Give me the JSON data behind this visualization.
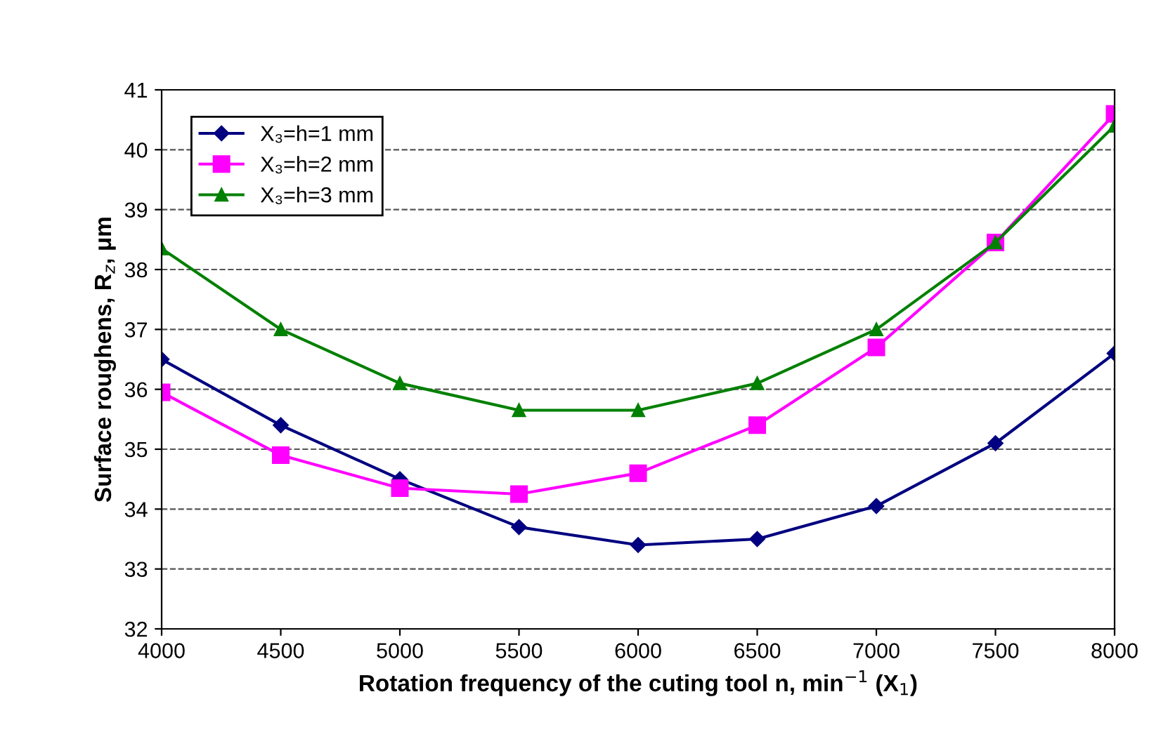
{
  "chart_data": {
    "type": "line",
    "xlabel": "Rotation frequency of the cuting tool n, min$^{−1}$ (X$_{1}$)",
    "ylabel": "Surface roughens, R$_{z}$, μm",
    "x": [
      4000,
      4500,
      5000,
      5500,
      6000,
      6500,
      7000,
      7500,
      8000
    ],
    "series": [
      {
        "name": "X₃=h=1 mm",
        "color": "#000080",
        "marker": "diamond",
        "values": [
          36.5,
          35.4,
          34.5,
          33.7,
          33.4,
          33.5,
          34.05,
          35.1,
          36.6
        ]
      },
      {
        "name": "X₃=h=2 mm",
        "color": "#ff00ff",
        "marker": "square",
        "values": [
          35.95,
          34.9,
          34.35,
          34.25,
          34.6,
          35.4,
          36.7,
          38.45,
          40.6
        ]
      },
      {
        "name": "X₃=h=3 mm",
        "color": "#008000",
        "marker": "triangle",
        "values": [
          38.35,
          37.0,
          36.1,
          35.65,
          35.65,
          36.1,
          37.0,
          38.45,
          40.4
        ]
      }
    ],
    "xlim": [
      4000,
      8000
    ],
    "xticks": [
      4000,
      4500,
      5000,
      5500,
      6000,
      6500,
      7000,
      7500,
      8000
    ],
    "ylim": [
      32,
      41
    ],
    "yticks": [
      32,
      33,
      34,
      35,
      36,
      37,
      38,
      39,
      40,
      41
    ],
    "grid": "y",
    "legend": "top left",
    "line_style": "solid"
  }
}
